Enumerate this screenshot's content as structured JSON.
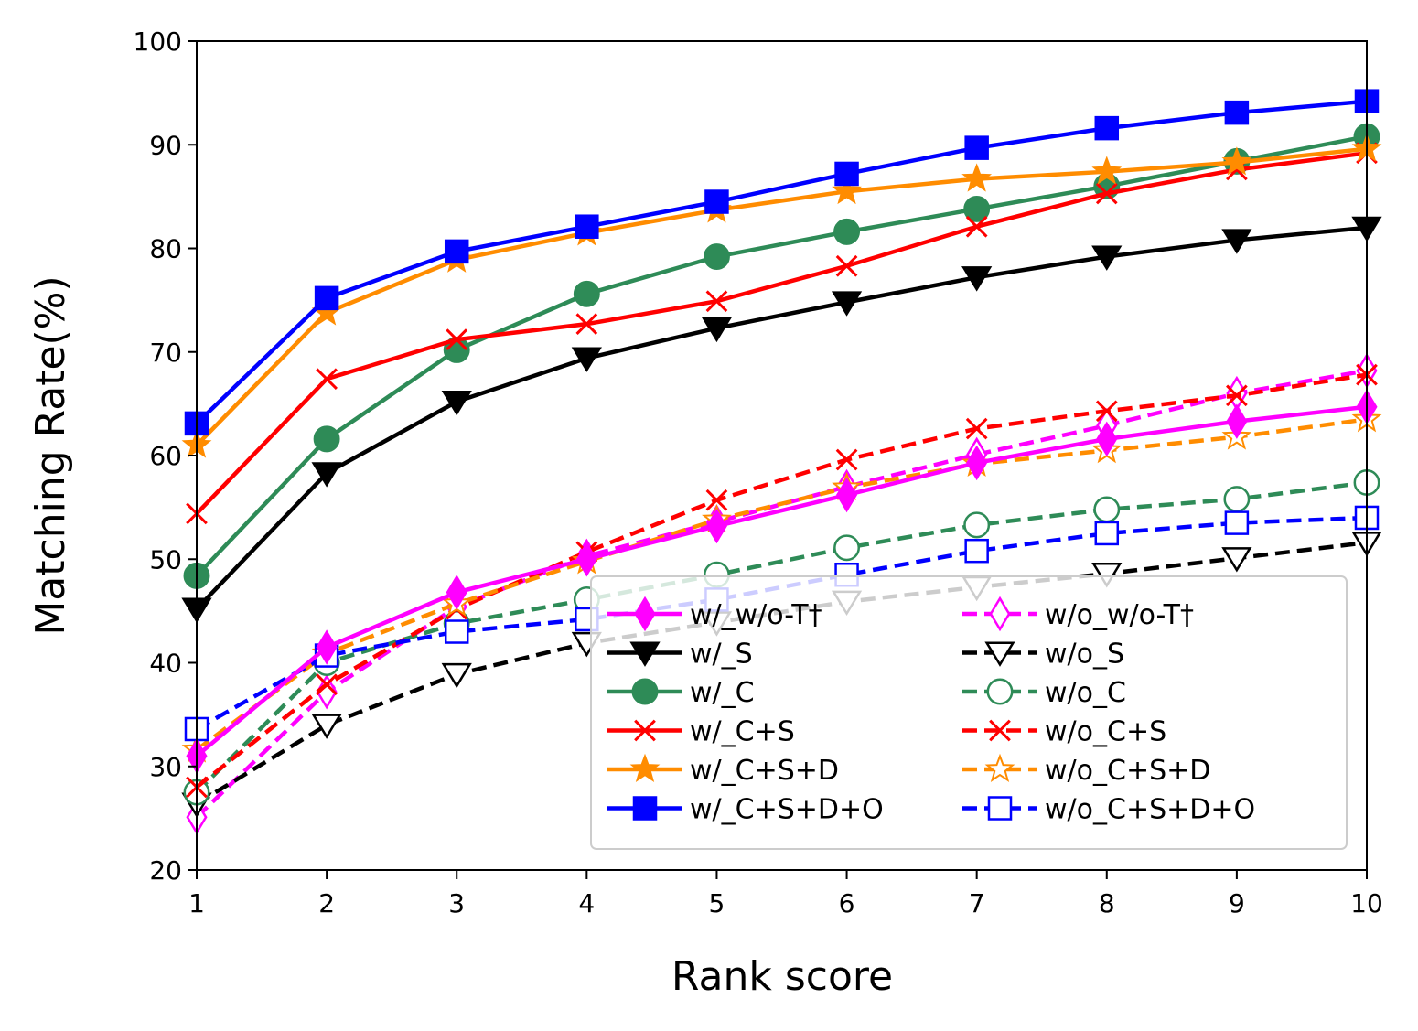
{
  "chart_data": {
    "type": "line",
    "title": "",
    "xlabel": "Rank score",
    "ylabel": "Matching Rate(%)",
    "xlim": [
      1,
      10
    ],
    "ylim": [
      20,
      100
    ],
    "x": [
      1,
      2,
      3,
      4,
      5,
      6,
      7,
      8,
      9,
      10
    ],
    "x_ticks": [
      "1",
      "2",
      "3",
      "4",
      "5",
      "6",
      "7",
      "8",
      "9",
      "10"
    ],
    "y_ticks": [
      "20",
      "30",
      "40",
      "50",
      "60",
      "70",
      "80",
      "90",
      "100"
    ],
    "y_tick_values": [
      20,
      30,
      40,
      50,
      60,
      70,
      80,
      90,
      100
    ],
    "grid": false,
    "legend_position": "lower-right",
    "legend_columns": 2,
    "series": [
      {
        "name": "w/_w/o-T†",
        "color": "#ff00ff",
        "dash": "solid",
        "marker": "diamond",
        "filled": true,
        "values": [
          31.0,
          41.5,
          46.8,
          50.0,
          53.2,
          56.2,
          59.3,
          61.6,
          63.3,
          64.7
        ]
      },
      {
        "name": "w/_S",
        "color": "#000000",
        "dash": "solid",
        "marker": "triangle-down",
        "filled": true,
        "values": [
          45.2,
          58.3,
          65.2,
          69.4,
          72.3,
          74.8,
          77.2,
          79.2,
          80.8,
          82.0
        ]
      },
      {
        "name": "w/_C",
        "color": "#2e8b57",
        "dash": "solid",
        "marker": "circle",
        "filled": true,
        "values": [
          48.4,
          61.6,
          70.2,
          75.6,
          79.2,
          81.6,
          83.8,
          86.0,
          88.4,
          90.8
        ]
      },
      {
        "name": "w/_C+S",
        "color": "#ff0000",
        "dash": "solid",
        "marker": "x",
        "filled": true,
        "values": [
          54.4,
          67.4,
          71.2,
          72.7,
          74.9,
          78.3,
          82.1,
          85.3,
          87.6,
          89.2
        ]
      },
      {
        "name": "w/_C+S+D",
        "color": "#ff8c00",
        "dash": "solid",
        "marker": "star",
        "filled": true,
        "values": [
          61.0,
          73.8,
          78.9,
          81.5,
          83.7,
          85.5,
          86.7,
          87.4,
          88.3,
          89.6
        ]
      },
      {
        "name": "w/_C+S+D+O",
        "color": "#0000ff",
        "dash": "solid",
        "marker": "square",
        "filled": true,
        "values": [
          63.1,
          75.2,
          79.7,
          82.1,
          84.5,
          87.2,
          89.7,
          91.6,
          93.1,
          94.2
        ]
      },
      {
        "name": "w/o_w/o-T†",
        "color": "#ff00ff",
        "dash": "dashed",
        "marker": "diamond",
        "filled": false,
        "values": [
          25.1,
          37.2,
          45.4,
          50.3,
          53.6,
          57.0,
          60.1,
          62.9,
          66.0,
          68.2
        ]
      },
      {
        "name": "w/o_S",
        "color": "#000000",
        "dash": "dashed",
        "marker": "triangle-down",
        "filled": false,
        "values": [
          26.4,
          34.0,
          38.9,
          41.9,
          43.9,
          45.9,
          47.3,
          48.6,
          50.1,
          51.6
        ]
      },
      {
        "name": "w/o_C",
        "color": "#2e8b57",
        "dash": "dashed",
        "marker": "circle",
        "filled": false,
        "values": [
          27.5,
          40.0,
          43.8,
          46.1,
          48.5,
          51.1,
          53.3,
          54.8,
          55.8,
          57.4
        ]
      },
      {
        "name": "w/o_C+S",
        "color": "#ff0000",
        "dash": "dashed",
        "marker": "x",
        "filled": false,
        "values": [
          28.0,
          37.9,
          45.2,
          50.7,
          55.7,
          59.6,
          62.6,
          64.3,
          65.8,
          67.8
        ]
      },
      {
        "name": "w/o_C+S+D",
        "color": "#ff8c00",
        "dash": "dashed",
        "marker": "star",
        "filled": false,
        "values": [
          31.6,
          40.9,
          45.7,
          49.8,
          53.8,
          56.9,
          59.2,
          60.5,
          61.8,
          63.5
        ]
      },
      {
        "name": "w/o_C+S+D+O",
        "color": "#0000ff",
        "dash": "dashed",
        "marker": "square",
        "filled": false,
        "values": [
          33.6,
          40.7,
          43.0,
          44.2,
          46.1,
          48.5,
          50.8,
          52.5,
          53.5,
          54.0
        ]
      }
    ]
  }
}
